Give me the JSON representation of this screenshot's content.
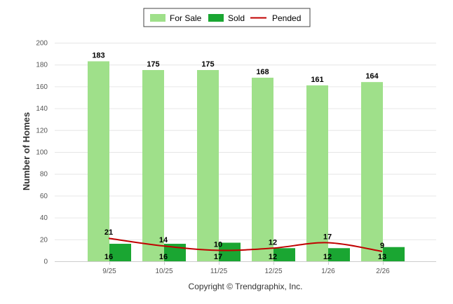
{
  "chart_data": {
    "type": "bar",
    "categories": [
      "9/25",
      "10/25",
      "11/25",
      "12/25",
      "1/26",
      "2/26"
    ],
    "series": [
      {
        "name": "For Sale",
        "type": "bar",
        "color": "#9fe08a",
        "values": [
          183,
          175,
          175,
          168,
          161,
          164
        ]
      },
      {
        "name": "Sold",
        "type": "bar",
        "color": "#1aa632",
        "values": [
          16,
          16,
          17,
          12,
          12,
          13
        ]
      },
      {
        "name": "Pended",
        "type": "line",
        "color": "#c00000",
        "values": [
          21,
          14,
          10,
          12,
          17,
          9
        ]
      }
    ],
    "ylabel": "Number of Homes",
    "xlabel": "",
    "ylim": [
      0,
      200
    ],
    "yticks": [
      0,
      20,
      40,
      60,
      80,
      100,
      120,
      140,
      160,
      180,
      200
    ],
    "grid": true,
    "legend": "top-center"
  },
  "footer": {
    "copyright": "Copyright © Trendgraphix, Inc."
  }
}
